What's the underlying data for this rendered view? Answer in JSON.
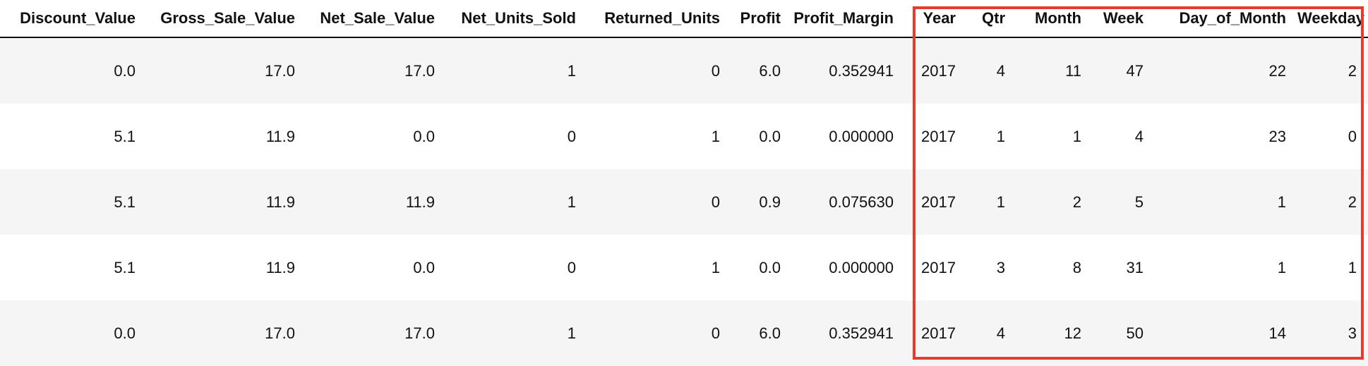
{
  "table": {
    "columns": [
      "Discount_Value",
      "Gross_Sale_Value",
      "Net_Sale_Value",
      "Net_Units_Sold",
      "Returned_Units",
      "Profit",
      "Profit_Margin",
      "Year",
      "Qtr",
      "Month",
      "Week",
      "Day_of_Month",
      "Weekday"
    ],
    "rows": [
      [
        "0.0",
        "17.0",
        "17.0",
        "1",
        "0",
        "6.0",
        "0.352941",
        "2017",
        "4",
        "11",
        "47",
        "22",
        "2"
      ],
      [
        "5.1",
        "11.9",
        "0.0",
        "0",
        "1",
        "0.0",
        "0.000000",
        "2017",
        "1",
        "1",
        "4",
        "23",
        "0"
      ],
      [
        "5.1",
        "11.9",
        "11.9",
        "1",
        "0",
        "0.9",
        "0.075630",
        "2017",
        "1",
        "2",
        "5",
        "1",
        "2"
      ],
      [
        "5.1",
        "11.9",
        "0.0",
        "0",
        "1",
        "0.0",
        "0.000000",
        "2017",
        "3",
        "8",
        "31",
        "1",
        "1"
      ],
      [
        "0.0",
        "17.0",
        "17.0",
        "1",
        "0",
        "6.0",
        "0.352941",
        "2017",
        "4",
        "12",
        "50",
        "14",
        "3"
      ]
    ]
  },
  "highlight": {
    "color": "#e43c2f",
    "columns_enclosed": [
      "Year",
      "Qtr",
      "Month",
      "Week",
      "Day_of_Month",
      "Weekday"
    ]
  }
}
